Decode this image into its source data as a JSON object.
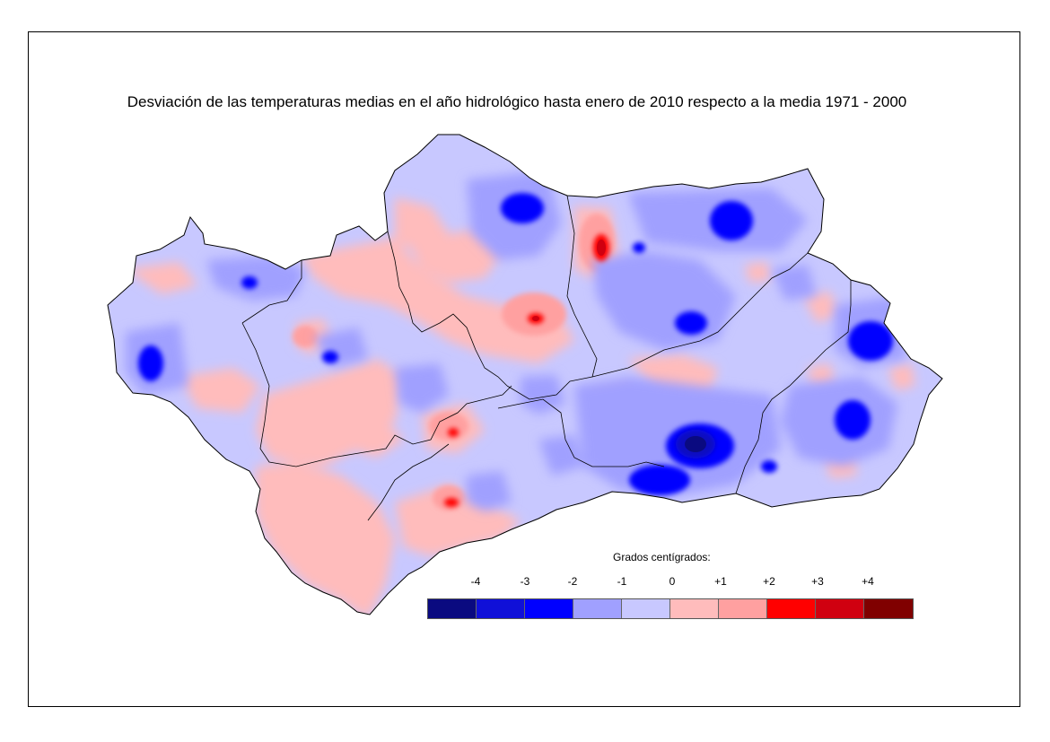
{
  "title": "Desviación de las temperaturas medias en el año hidrológico hasta enero de 2010 respecto a la media 1971 - 2000",
  "legend": {
    "title": "Grados centígrados:",
    "ticks": [
      "-4",
      "-3",
      "-2",
      "-1",
      "0",
      "+1",
      "+2",
      "+3",
      "+4"
    ],
    "colors": [
      "#0a0a80",
      "#1010d8",
      "#0000ff",
      "#a0a0ff",
      "#c8c8ff",
      "#ffbcbc",
      "#ffa0a0",
      "#ff0000",
      "#d00010",
      "#800000"
    ]
  }
}
